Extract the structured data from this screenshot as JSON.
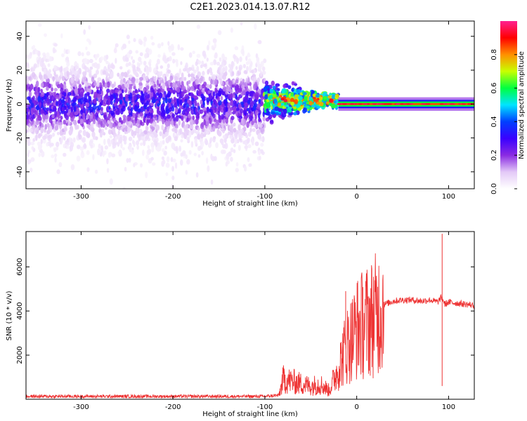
{
  "title": "C2E1.2023.014.13.07.R12",
  "chart_data": [
    {
      "type": "heatmap",
      "xlabel": "Height of straight line (km)",
      "ylabel": "Frequency (Hz)",
      "xlim": [
        -360,
        128
      ],
      "ylim": [
        -50,
        49
      ],
      "xticks": [
        -300,
        -200,
        -100,
        0,
        100
      ],
      "yticks": [
        -40,
        -20,
        0,
        20,
        40
      ],
      "colorbar": {
        "label": "Normalized spectral amplitude",
        "range": [
          0.0,
          1.0
        ],
        "ticks": [
          0.0,
          0.2,
          0.4,
          0.6,
          0.8
        ],
        "colormap": [
          "#ffffff",
          "#e3c9f7",
          "#8a2be2",
          "#3a00ff",
          "#0040ff",
          "#00e5ff",
          "#00ff40",
          "#c8ff00",
          "#ff9000",
          "#ff0000",
          "#ff2090"
        ]
      },
      "regions": [
        {
          "x_range": [
            -360,
            -100
          ],
          "description_level": "noisy",
          "typical_amplitude": 0.15
        },
        {
          "x_range": [
            -100,
            -20
          ],
          "description_level": "burst",
          "typical_amplitude": 0.45
        },
        {
          "x_range": [
            -20,
            128
          ],
          "description_level": "steady",
          "typical_amplitude": 0.85
        }
      ]
    },
    {
      "type": "line",
      "xlabel": "Height of straight line (km)",
      "ylabel": "SNR (10 * v/v)",
      "xlim": [
        -360,
        128
      ],
      "ylim": [
        0,
        7600
      ],
      "xticks": [
        -300,
        -200,
        -100,
        0,
        100
      ],
      "yticks": [
        2000,
        4000,
        6000
      ],
      "series": [
        {
          "name": "SNR",
          "color": "#ee3333",
          "x": [
            -360,
            -300,
            -200,
            -100,
            -85,
            -80,
            -70,
            -60,
            -50,
            -40,
            -30,
            -20,
            -15,
            -10,
            -5,
            0,
            10,
            20,
            30,
            40,
            50,
            60,
            70,
            80,
            88,
            92,
            94,
            96,
            100,
            110,
            120,
            128
          ],
          "y": [
            100,
            100,
            100,
            100,
            150,
            900,
            800,
            700,
            600,
            700,
            400,
            1400,
            2000,
            2500,
            2800,
            3200,
            3500,
            3800,
            4300,
            4450,
            4500,
            4500,
            4450,
            4500,
            4400,
            4600,
            4500,
            4300,
            4400,
            4350,
            4300,
            4250
          ]
        }
      ],
      "spikes": [
        {
          "x": -12,
          "y": 4900
        },
        {
          "x": 93,
          "y": 7500
        },
        {
          "x": 93,
          "y": 600
        }
      ]
    }
  ]
}
